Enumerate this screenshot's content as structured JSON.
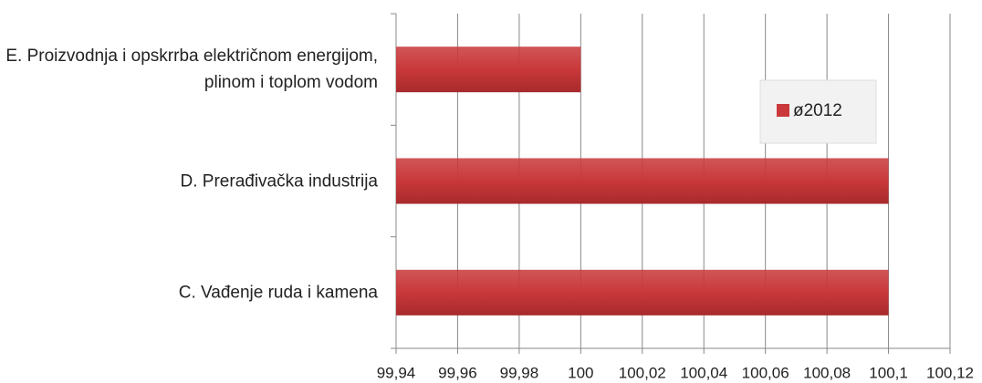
{
  "chart_data": {
    "type": "barh",
    "categories": [
      "C. Vađenje ruda i kamena",
      "D. Prerađivačka industrija",
      "E. Proizvodnja i opskrrba električnom energijom, plinom i toplom vodom"
    ],
    "series": [
      {
        "name": "ø2012",
        "color": "#c9383a",
        "values": [
          100.1,
          100.1,
          100
        ]
      }
    ],
    "xlim": [
      99.94,
      100.12
    ],
    "xticks": [
      {
        "value": 99.94,
        "label": "99,94"
      },
      {
        "value": 99.96,
        "label": "99,96"
      },
      {
        "value": 99.98,
        "label": "99,98"
      },
      100,
      {
        "value": 100.02,
        "label": "100,02"
      },
      {
        "value": 100.04,
        "label": "100,04"
      },
      {
        "value": 100.06,
        "label": "100,06"
      },
      {
        "value": 100.08,
        "label": "100,08"
      },
      {
        "value": 100.1,
        "label": "100,1"
      },
      {
        "value": 100.12,
        "label": "100,12"
      }
    ],
    "grid": true,
    "legend": "top-right"
  }
}
